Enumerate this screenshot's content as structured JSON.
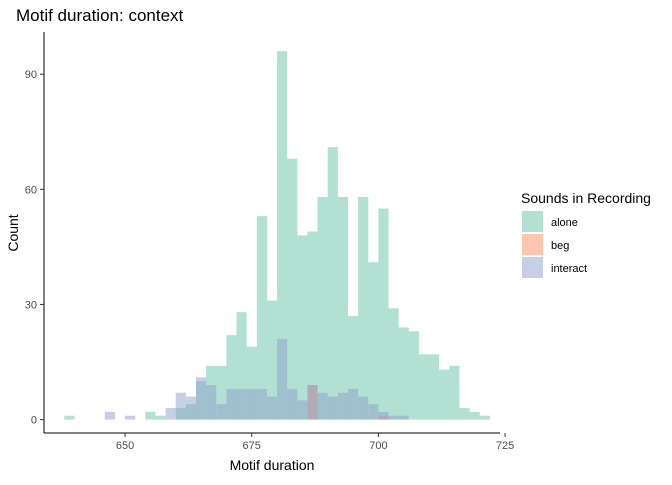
{
  "chart_data": {
    "type": "histogram",
    "title": "Motif duration: context",
    "xlabel": "Motif duration",
    "ylabel": "Count",
    "xlim": [
      634,
      724
    ],
    "ylim": [
      -3.5,
      101
    ],
    "xticks": [
      650,
      675,
      700,
      725
    ],
    "yticks": [
      0,
      30,
      60,
      90
    ],
    "bin_width": 2,
    "grid": false,
    "legend": {
      "title": "Sounds in Recording",
      "placement": "right"
    },
    "series": [
      {
        "name": "alone",
        "color": "#66C2A5",
        "bins": [
          [
            638,
            1
          ],
          [
            654,
            2
          ],
          [
            656,
            1
          ],
          [
            660,
            3
          ],
          [
            662,
            4
          ],
          [
            664,
            10
          ],
          [
            666,
            14
          ],
          [
            668,
            14
          ],
          [
            670,
            22
          ],
          [
            672,
            28
          ],
          [
            674,
            19
          ],
          [
            676,
            53
          ],
          [
            678,
            31
          ],
          [
            680,
            96
          ],
          [
            682,
            68
          ],
          [
            684,
            48
          ],
          [
            686,
            49
          ],
          [
            688,
            58
          ],
          [
            690,
            71
          ],
          [
            692,
            58
          ],
          [
            694,
            27
          ],
          [
            696,
            58
          ],
          [
            698,
            41
          ],
          [
            700,
            55
          ],
          [
            702,
            29
          ],
          [
            704,
            24
          ],
          [
            706,
            23
          ],
          [
            708,
            17
          ],
          [
            710,
            17
          ],
          [
            712,
            13
          ],
          [
            714,
            14
          ],
          [
            716,
            3
          ],
          [
            718,
            2
          ],
          [
            720,
            1
          ]
        ]
      },
      {
        "name": "beg",
        "color": "#FC8D62",
        "bins": [
          [
            686,
            9
          ],
          [
            700,
            1
          ]
        ]
      },
      {
        "name": "interact",
        "color": "#8DA0CB",
        "bins": [
          [
            646,
            2
          ],
          [
            650,
            1
          ],
          [
            658,
            3
          ],
          [
            660,
            7
          ],
          [
            662,
            6
          ],
          [
            664,
            11
          ],
          [
            666,
            9
          ],
          [
            668,
            4
          ],
          [
            670,
            8
          ],
          [
            672,
            8
          ],
          [
            674,
            8
          ],
          [
            676,
            8
          ],
          [
            678,
            6
          ],
          [
            680,
            21
          ],
          [
            682,
            8
          ],
          [
            684,
            5
          ],
          [
            686,
            9
          ],
          [
            688,
            7
          ],
          [
            690,
            6
          ],
          [
            692,
            7
          ],
          [
            694,
            8
          ],
          [
            696,
            6
          ],
          [
            698,
            4
          ],
          [
            700,
            2
          ],
          [
            702,
            1
          ],
          [
            704,
            1
          ]
        ]
      }
    ]
  }
}
